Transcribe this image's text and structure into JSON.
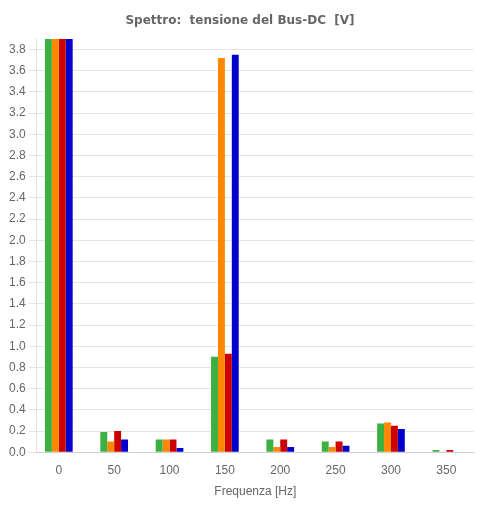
{
  "chart_data": {
    "type": "bar",
    "title": "Spettro:  tensione del Bus-DC  [V]",
    "xlabel": "Frequenza [Hz]",
    "x": [
      0,
      50,
      100,
      150,
      200,
      250,
      300,
      350
    ],
    "series": [
      {
        "color": "#3cb040",
        "values": [
          3.9,
          0.19,
          0.12,
          0.9,
          0.12,
          0.1,
          0.27,
          0.02
        ]
      },
      {
        "color": "#ff8800",
        "values": [
          3.9,
          0.1,
          0.12,
          3.72,
          0.05,
          0.05,
          0.28,
          0.0
        ]
      },
      {
        "color": "#cc0000",
        "values": [
          3.9,
          0.2,
          0.12,
          0.93,
          0.12,
          0.1,
          0.25,
          0.02
        ]
      },
      {
        "color": "#0000cc",
        "values": [
          3.9,
          0.12,
          0.04,
          3.75,
          0.05,
          0.06,
          0.22,
          0.0
        ]
      }
    ],
    "xlim": [
      -20,
      375
    ],
    "xticks": [
      0,
      50,
      100,
      150,
      200,
      250,
      300,
      350
    ],
    "ylim": [
      0.0,
      3.905
    ],
    "yticks": [
      {
        "value": 0.0,
        "label": "0.0"
      },
      0.2,
      0.4,
      0.6,
      0.8,
      {
        "value": 1.0,
        "label": "1.0"
      },
      1.2,
      1.4,
      1.6,
      1.8,
      {
        "value": 2.0,
        "label": "2.0"
      },
      2.2,
      2.4,
      2.6,
      2.8,
      {
        "value": 3.0,
        "label": "3.0"
      },
      3.2,
      3.4,
      3.6,
      3.8
    ],
    "grid": "y"
  }
}
